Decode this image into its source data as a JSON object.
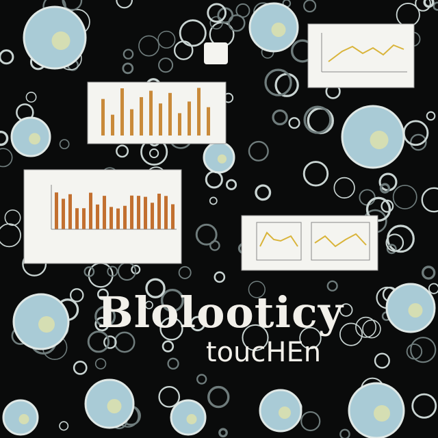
{
  "title": "Blolooticy",
  "subtitle": "toucHEn"
}
